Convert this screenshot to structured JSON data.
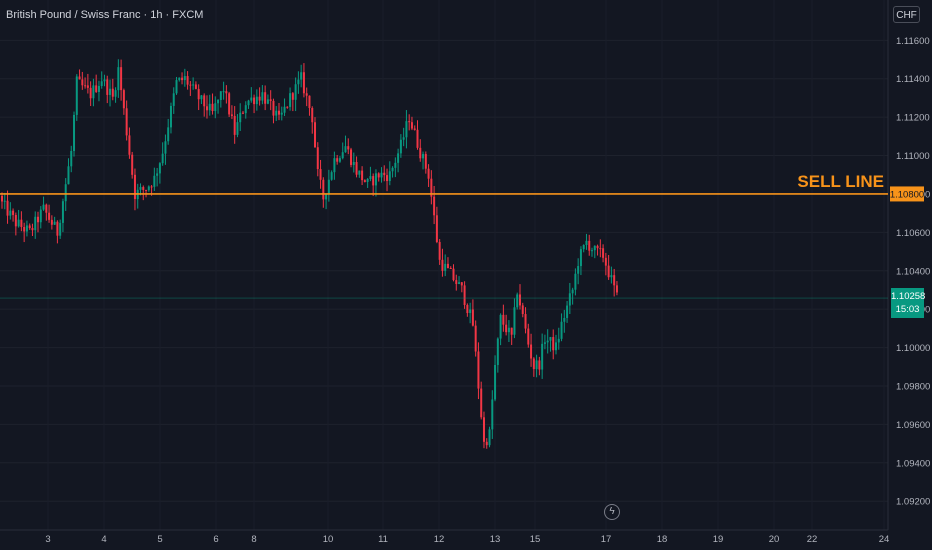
{
  "title": "British Pound / Swiss Franc · 1h · FXCM",
  "currency_button": "CHF",
  "sell_line": {
    "label": "SELL LINE",
    "price": 1.108,
    "price_label": "1.10800",
    "color": "#f7931a"
  },
  "last_price": {
    "value": 1.10258,
    "label": "1.10258",
    "countdown": "15:03",
    "color": "#089981"
  },
  "colors": {
    "up": "#089981",
    "down": "#f23645",
    "background": "#131722",
    "grid": "#1e222d",
    "text": "#d1d4dc"
  },
  "chart_data": {
    "type": "candlestick",
    "symbol": "GBPCHF",
    "timeframe": "1h",
    "y_ticks": [
      1.092,
      1.094,
      1.096,
      1.098,
      1.1,
      1.102,
      1.104,
      1.106,
      1.108,
      1.11,
      1.112,
      1.114,
      1.116
    ],
    "y_tick_labels": [
      "1.09200",
      "1.09400",
      "1.09600",
      "1.09800",
      "1.10000",
      "1.10200",
      "1.10400",
      "1.10600",
      "1.10800",
      "1.11000",
      "1.11200",
      "1.11400",
      "1.11600"
    ],
    "x_tick_labels": [
      "3",
      "4",
      "5",
      "6",
      "8",
      "10",
      "11",
      "12",
      "13",
      "15",
      "17",
      "18",
      "19",
      "20",
      "22",
      "24"
    ],
    "ylim": [
      1.0905,
      1.1181
    ],
    "path_keypoints": [
      [
        0,
        1.1075
      ],
      [
        5,
        1.1065
      ],
      [
        10,
        1.106
      ],
      [
        15,
        1.1072
      ],
      [
        20,
        1.106
      ],
      [
        25,
        1.1102
      ],
      [
        27,
        1.1138
      ],
      [
        32,
        1.1132
      ],
      [
        36,
        1.114
      ],
      [
        40,
        1.113
      ],
      [
        42,
        1.1145
      ],
      [
        48,
        1.108
      ],
      [
        52,
        1.1083
      ],
      [
        55,
        1.1088
      ],
      [
        58,
        1.1102
      ],
      [
        63,
        1.1138
      ],
      [
        66,
        1.114
      ],
      [
        72,
        1.1128
      ],
      [
        76,
        1.1122
      ],
      [
        80,
        1.1135
      ],
      [
        84,
        1.1112
      ],
      [
        88,
        1.1128
      ],
      [
        94,
        1.1132
      ],
      [
        100,
        1.1118
      ],
      [
        104,
        1.113
      ],
      [
        108,
        1.114
      ],
      [
        112,
        1.112
      ],
      [
        114,
        1.109
      ],
      [
        116,
        1.1078
      ],
      [
        120,
        1.1098
      ],
      [
        124,
        1.1105
      ],
      [
        128,
        1.1092
      ],
      [
        132,
        1.1085
      ],
      [
        136,
        1.109
      ],
      [
        140,
        1.109
      ],
      [
        144,
        1.1105
      ],
      [
        147,
        1.112
      ],
      [
        151,
        1.1102
      ],
      [
        154,
        1.109
      ],
      [
        158,
        1.1045
      ],
      [
        162,
        1.1038
      ],
      [
        166,
        1.103
      ],
      [
        170,
        1.1012
      ],
      [
        172,
        1.098
      ],
      [
        174,
        1.095
      ],
      [
        176,
        1.0955
      ],
      [
        178,
        1.099
      ],
      [
        180,
        1.1015
      ],
      [
        184,
        1.1005
      ],
      [
        186,
        1.103
      ],
      [
        190,
        1.1002
      ],
      [
        192,
        1.099
      ],
      [
        194,
        1.0992
      ],
      [
        196,
        1.1005
      ],
      [
        200,
        1.1
      ],
      [
        202,
        1.1012
      ],
      [
        206,
        1.103
      ],
      [
        208,
        1.1045
      ],
      [
        211,
        1.1055
      ],
      [
        214,
        1.105
      ],
      [
        217,
        1.1048
      ],
      [
        220,
        1.1035
      ],
      [
        222,
        1.1026
      ]
    ]
  }
}
